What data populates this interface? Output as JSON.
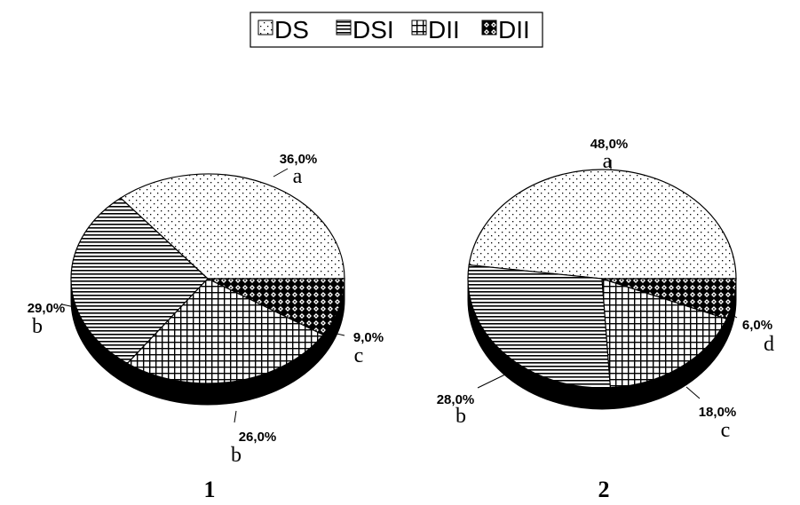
{
  "legend": {
    "items": [
      {
        "label": "DS",
        "pattern": "dots"
      },
      {
        "label": "DSI",
        "pattern": "hlines"
      },
      {
        "label": "DII",
        "pattern": "grid"
      },
      {
        "label": "DII",
        "pattern": "diamond"
      }
    ]
  },
  "chart_data": [
    {
      "type": "pie",
      "title": "1",
      "categories": [
        "DS",
        "DSI",
        "DII",
        "DII"
      ],
      "values": [
        36.0,
        29.0,
        26.0,
        9.0
      ],
      "value_labels": [
        "36,0%",
        "29,0%",
        "26,0%",
        "9,0%"
      ],
      "letters": [
        "a",
        "b",
        "b",
        "c"
      ],
      "style": "3d"
    },
    {
      "type": "pie",
      "title": "2",
      "categories": [
        "DS",
        "DSI",
        "DII",
        "DII"
      ],
      "values": [
        48.0,
        28.0,
        18.0,
        6.0
      ],
      "value_labels": [
        "48,0%",
        "28,0%",
        "18,0%",
        "6,0%"
      ],
      "letters": [
        "a",
        "b",
        "c",
        "d"
      ],
      "style": "3d"
    }
  ]
}
